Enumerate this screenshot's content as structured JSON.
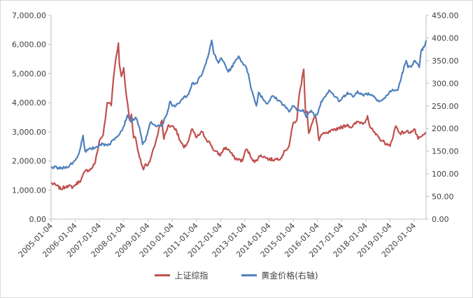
{
  "chart_data": {
    "type": "line",
    "title": "",
    "xlabel": "",
    "ylabel": "",
    "x_tick_labels": [
      "2005-01-04",
      "2006-01-04",
      "2007-01-04",
      "2008-01-04",
      "2009-01-04",
      "2010-01-04",
      "2011-01-04",
      "2012-01-04",
      "2013-01-04",
      "2014-01-04",
      "2015-01-04",
      "2016-01-04",
      "2017-01-04",
      "2018-01-04",
      "2019-01-04",
      "2020-01-04"
    ],
    "x_range": [
      "2005-01-04",
      "2020-07-01"
    ],
    "y_left": {
      "range": [
        0,
        7000
      ],
      "ticks": [
        "0.00",
        "1,000.00",
        "2,000.00",
        "3,000.00",
        "4,000.00",
        "5,000.00",
        "6,000.00",
        "7,000.00"
      ]
    },
    "y_right": {
      "range": [
        0,
        450
      ],
      "ticks": [
        "0.00",
        "50.00",
        "100.00",
        "150.00",
        "200.00",
        "250.00",
        "300.00",
        "350.00",
        "400.00",
        "450.00"
      ]
    },
    "grid": false,
    "legend_position": "bottom",
    "series": [
      {
        "name": "上证综指",
        "axis": "left",
        "color": "#c0504d",
        "points": [
          [
            "2005-01-04",
            1240
          ],
          [
            "2005-04-01",
            1150
          ],
          [
            "2005-06-01",
            1030
          ],
          [
            "2005-09-01",
            1150
          ],
          [
            "2005-12-01",
            1100
          ],
          [
            "2006-01-04",
            1180
          ],
          [
            "2006-04-01",
            1350
          ],
          [
            "2006-06-01",
            1650
          ],
          [
            "2006-09-01",
            1720
          ],
          [
            "2006-11-01",
            1950
          ],
          [
            "2007-01-04",
            2700
          ],
          [
            "2007-03-01",
            2900
          ],
          [
            "2007-04-01",
            3400
          ],
          [
            "2007-05-01",
            4000
          ],
          [
            "2007-06-01",
            4000
          ],
          [
            "2007-07-01",
            3900
          ],
          [
            "2007-08-01",
            4800
          ],
          [
            "2007-09-01",
            5400
          ],
          [
            "2007-10-16",
            6050
          ],
          [
            "2007-11-01",
            5300
          ],
          [
            "2007-12-01",
            4900
          ],
          [
            "2008-01-04",
            5200
          ],
          [
            "2008-02-01",
            4500
          ],
          [
            "2008-03-01",
            4000
          ],
          [
            "2008-04-01",
            3400
          ],
          [
            "2008-05-01",
            3600
          ],
          [
            "2008-06-01",
            2800
          ],
          [
            "2008-07-01",
            2800
          ],
          [
            "2008-08-01",
            2400
          ],
          [
            "2008-09-01",
            2100
          ],
          [
            "2008-10-28",
            1700
          ],
          [
            "2008-12-01",
            1900
          ],
          [
            "2009-01-04",
            1850
          ],
          [
            "2009-03-01",
            2200
          ],
          [
            "2009-05-01",
            2650
          ],
          [
            "2009-07-01",
            3200
          ],
          [
            "2009-08-04",
            3400
          ],
          [
            "2009-09-01",
            2750
          ],
          [
            "2009-11-01",
            3200
          ],
          [
            "2010-01-04",
            3200
          ],
          [
            "2010-03-01",
            3100
          ],
          [
            "2010-05-01",
            2700
          ],
          [
            "2010-07-01",
            2450
          ],
          [
            "2010-09-01",
            2650
          ],
          [
            "2010-11-01",
            3100
          ],
          [
            "2011-01-04",
            2800
          ],
          [
            "2011-04-01",
            3000
          ],
          [
            "2011-06-01",
            2750
          ],
          [
            "2011-08-01",
            2600
          ],
          [
            "2011-10-01",
            2350
          ],
          [
            "2012-01-04",
            2200
          ],
          [
            "2012-03-01",
            2450
          ],
          [
            "2012-05-01",
            2400
          ],
          [
            "2012-08-01",
            2100
          ],
          [
            "2012-12-01",
            2000
          ],
          [
            "2013-01-04",
            2300
          ],
          [
            "2013-02-01",
            2400
          ],
          [
            "2013-06-01",
            1950
          ],
          [
            "2013-09-01",
            2200
          ],
          [
            "2013-12-01",
            2100
          ],
          [
            "2014-01-04",
            2050
          ],
          [
            "2014-04-01",
            2050
          ],
          [
            "2014-07-01",
            2100
          ],
          [
            "2014-09-01",
            2350
          ],
          [
            "2014-11-01",
            2500
          ],
          [
            "2015-01-04",
            3300
          ],
          [
            "2015-03-01",
            3400
          ],
          [
            "2015-04-01",
            4200
          ],
          [
            "2015-06-12",
            5150
          ],
          [
            "2015-07-08",
            3700
          ],
          [
            "2015-08-01",
            3700
          ],
          [
            "2015-08-26",
            2950
          ],
          [
            "2015-10-01",
            3200
          ],
          [
            "2015-12-01",
            3550
          ],
          [
            "2016-01-04",
            3200
          ],
          [
            "2016-01-28",
            2700
          ],
          [
            "2016-03-01",
            2900
          ],
          [
            "2016-06-01",
            2950
          ],
          [
            "2016-09-01",
            3050
          ],
          [
            "2016-12-01",
            3150
          ],
          [
            "2017-01-04",
            3150
          ],
          [
            "2017-04-01",
            3250
          ],
          [
            "2017-06-01",
            3150
          ],
          [
            "2017-09-01",
            3350
          ],
          [
            "2017-12-01",
            3300
          ],
          [
            "2018-01-04",
            3400
          ],
          [
            "2018-01-29",
            3550
          ],
          [
            "2018-03-01",
            3200
          ],
          [
            "2018-06-01",
            2900
          ],
          [
            "2018-09-01",
            2700
          ],
          [
            "2018-12-01",
            2550
          ],
          [
            "2019-01-04",
            2500
          ],
          [
            "2019-04-01",
            3200
          ],
          [
            "2019-06-01",
            2950
          ],
          [
            "2019-09-01",
            3000
          ],
          [
            "2019-12-01",
            3000
          ],
          [
            "2020-01-04",
            3100
          ],
          [
            "2020-03-01",
            2750
          ],
          [
            "2020-05-01",
            2850
          ],
          [
            "2020-07-01",
            2950
          ]
        ]
      },
      {
        "name": "黄金价格(右轴)",
        "axis": "right",
        "color": "#4f81bd",
        "points": [
          [
            "2005-01-04",
            115
          ],
          [
            "2005-06-01",
            112
          ],
          [
            "2005-09-01",
            115
          ],
          [
            "2005-12-01",
            125
          ],
          [
            "2006-01-04",
            130
          ],
          [
            "2006-03-01",
            145
          ],
          [
            "2006-05-01",
            185
          ],
          [
            "2006-06-01",
            150
          ],
          [
            "2006-09-01",
            155
          ],
          [
            "2006-12-01",
            160
          ],
          [
            "2007-01-04",
            165
          ],
          [
            "2007-06-01",
            165
          ],
          [
            "2007-09-01",
            180
          ],
          [
            "2007-12-01",
            195
          ],
          [
            "2008-01-04",
            205
          ],
          [
            "2008-03-01",
            230
          ],
          [
            "2008-05-01",
            215
          ],
          [
            "2008-07-01",
            225
          ],
          [
            "2008-09-01",
            200
          ],
          [
            "2008-10-15",
            165
          ],
          [
            "2008-12-01",
            175
          ],
          [
            "2009-01-04",
            195
          ],
          [
            "2009-02-20",
            215
          ],
          [
            "2009-05-01",
            205
          ],
          [
            "2009-08-01",
            205
          ],
          [
            "2009-11-01",
            240
          ],
          [
            "2009-12-03",
            260
          ],
          [
            "2010-01-04",
            250
          ],
          [
            "2010-03-01",
            250
          ],
          [
            "2010-06-01",
            265
          ],
          [
            "2010-09-01",
            275
          ],
          [
            "2010-11-01",
            300
          ],
          [
            "2011-01-04",
            300
          ],
          [
            "2011-04-01",
            320
          ],
          [
            "2011-06-01",
            345
          ],
          [
            "2011-08-23",
            395
          ],
          [
            "2011-09-25",
            365
          ],
          [
            "2011-12-01",
            345
          ],
          [
            "2012-01-04",
            355
          ],
          [
            "2012-03-01",
            345
          ],
          [
            "2012-05-01",
            325
          ],
          [
            "2012-08-01",
            345
          ],
          [
            "2012-10-01",
            360
          ],
          [
            "2012-12-01",
            345
          ],
          [
            "2013-01-04",
            340
          ],
          [
            "2013-03-01",
            320
          ],
          [
            "2013-04-16",
            285
          ],
          [
            "2013-06-28",
            250
          ],
          [
            "2013-08-01",
            280
          ],
          [
            "2013-12-01",
            255
          ],
          [
            "2014-01-04",
            260
          ],
          [
            "2014-03-01",
            272
          ],
          [
            "2014-06-01",
            262
          ],
          [
            "2014-09-01",
            250
          ],
          [
            "2014-11-01",
            237
          ],
          [
            "2015-01-04",
            250
          ],
          [
            "2015-03-01",
            240
          ],
          [
            "2015-06-01",
            242
          ],
          [
            "2015-07-20",
            225
          ],
          [
            "2015-10-01",
            240
          ],
          [
            "2015-12-01",
            228
          ],
          [
            "2016-01-04",
            232
          ],
          [
            "2016-03-01",
            260
          ],
          [
            "2016-07-01",
            285
          ],
          [
            "2016-10-01",
            270
          ],
          [
            "2016-12-01",
            260
          ],
          [
            "2017-01-04",
            265
          ],
          [
            "2017-04-01",
            280
          ],
          [
            "2017-07-01",
            270
          ],
          [
            "2017-09-01",
            283
          ],
          [
            "2017-12-01",
            272
          ],
          [
            "2018-01-04",
            278
          ],
          [
            "2018-04-01",
            275
          ],
          [
            "2018-08-01",
            260
          ],
          [
            "2018-10-01",
            265
          ],
          [
            "2018-12-01",
            275
          ],
          [
            "2019-01-04",
            283
          ],
          [
            "2019-05-01",
            285
          ],
          [
            "2019-06-25",
            315
          ],
          [
            "2019-09-04",
            350
          ],
          [
            "2019-10-01",
            335
          ],
          [
            "2019-12-01",
            340
          ],
          [
            "2020-01-04",
            350
          ],
          [
            "2020-03-20",
            335
          ],
          [
            "2020-04-15",
            370
          ],
          [
            "2020-06-01",
            380
          ],
          [
            "2020-07-01",
            395
          ]
        ]
      }
    ]
  }
}
